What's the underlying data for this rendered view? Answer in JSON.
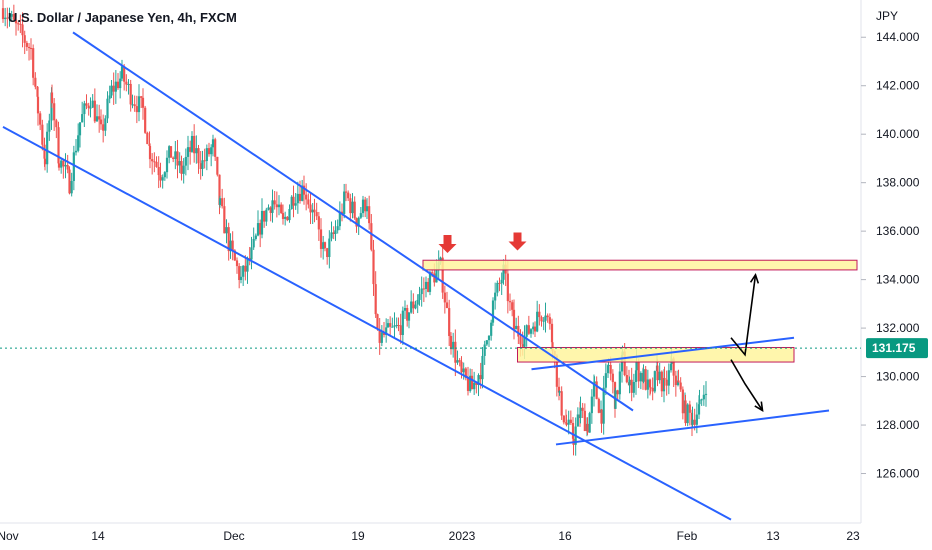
{
  "chart_data": {
    "type": "candlestick",
    "title": "U.S. Dollar / Japanese Yen, 4h, FXCM",
    "y_unit": "JPY",
    "ylim": [
      124.0,
      145.0
    ],
    "y_ticks": [
      "144.000",
      "142.000",
      "140.000",
      "138.000",
      "136.000",
      "134.000",
      "132.000",
      "130.000",
      "128.000",
      "126.000"
    ],
    "x_ticks": [
      "Nov",
      "14",
      "Dec",
      "19",
      "2023",
      "16",
      "Feb",
      "13",
      "23"
    ],
    "last_price": "131.175",
    "colors": {
      "up": "#26a69a",
      "down": "#ef5350",
      "trendline": "#2962ff",
      "zone_fill": "#fff59d",
      "zone_border": "#c2185b",
      "last_price": "#089981",
      "arrow_marker": "#e53935",
      "projection": "#000000"
    },
    "path_points": [
      [
        0,
        145.2
      ],
      [
        8,
        143.5
      ],
      [
        10,
        141.0
      ],
      [
        12,
        139.0
      ],
      [
        14,
        141.5
      ],
      [
        16,
        139.0
      ],
      [
        19,
        138.0
      ],
      [
        22,
        140.5
      ],
      [
        25,
        141.5
      ],
      [
        28,
        140.0
      ],
      [
        31,
        141.8
      ],
      [
        34,
        142.4
      ],
      [
        37,
        141.5
      ],
      [
        40,
        141.0
      ],
      [
        42,
        139.3
      ],
      [
        45,
        138.4
      ],
      [
        48,
        139.2
      ],
      [
        51,
        138.5
      ],
      [
        54,
        139.5
      ],
      [
        57,
        138.8
      ],
      [
        60,
        139.5
      ],
      [
        62,
        137.0
      ],
      [
        65,
        135.2
      ],
      [
        68,
        134.0
      ],
      [
        71,
        135.0
      ],
      [
        74,
        136.5
      ],
      [
        77,
        137.3
      ],
      [
        80,
        136.3
      ],
      [
        83,
        137.5
      ],
      [
        86,
        137.8
      ],
      [
        89,
        136.5
      ],
      [
        92,
        135.0
      ],
      [
        95,
        136.0
      ],
      [
        98,
        137.5
      ],
      [
        101,
        136.5
      ],
      [
        104,
        137.3
      ],
      [
        107,
        131.5
      ],
      [
        110,
        131.8
      ],
      [
        113,
        132.0
      ],
      [
        116,
        132.7
      ],
      [
        119,
        133.4
      ],
      [
        122,
        134.0
      ],
      [
        125,
        134.5
      ],
      [
        128,
        131.5
      ],
      [
        131,
        130.0
      ],
      [
        134,
        129.5
      ],
      [
        137,
        130.5
      ],
      [
        140,
        133.0
      ],
      [
        143,
        134.3
      ],
      [
        146,
        132.0
      ],
      [
        149,
        131.6
      ],
      [
        152,
        132.3
      ],
      [
        155,
        132.8
      ],
      [
        157,
        131.5
      ],
      [
        159,
        129.0
      ],
      [
        161,
        128.0
      ],
      [
        163,
        127.5
      ],
      [
        165,
        128.5
      ],
      [
        167,
        128.0
      ],
      [
        169,
        129.5
      ],
      [
        171,
        128.5
      ],
      [
        173,
        130.5
      ],
      [
        175,
        129.0
      ],
      [
        177,
        130.7
      ],
      [
        179,
        129.5
      ],
      [
        181,
        130.3
      ],
      [
        183,
        130.0
      ],
      [
        185,
        129.2
      ],
      [
        187,
        130.2
      ],
      [
        189,
        129.5
      ],
      [
        191,
        130.4
      ],
      [
        193,
        129.6
      ],
      [
        195,
        128.5
      ],
      [
        197,
        128.3
      ],
      [
        199,
        128.7
      ],
      [
        201,
        129.8
      ]
    ],
    "trendlines": [
      {
        "start": [
          0,
          140.3
        ],
        "end": [
          208,
          124.1
        ]
      },
      {
        "start": [
          20,
          144.2
        ],
        "end": [
          180,
          128.6
        ]
      },
      {
        "start": [
          151,
          130.3
        ],
        "end": [
          226,
          131.6
        ]
      },
      {
        "start": [
          158,
          127.2
        ],
        "end": [
          236,
          128.6
        ]
      }
    ],
    "zones": [
      {
        "x0": 120,
        "x1": 244,
        "y0": 134.4,
        "y1": 134.8
      },
      {
        "x0": 147,
        "x1": 226,
        "y0": 130.6,
        "y1": 131.2
      }
    ],
    "down_markers": [
      [
        127,
        135.1
      ],
      [
        147,
        135.2
      ]
    ],
    "projections": [
      {
        "points": [
          [
            208,
            131.6
          ],
          [
            212,
            130.9
          ],
          [
            215,
            134.2
          ]
        ]
      },
      {
        "points": [
          [
            208,
            130.7
          ],
          [
            212,
            129.7
          ],
          [
            217,
            128.6
          ]
        ]
      }
    ]
  }
}
